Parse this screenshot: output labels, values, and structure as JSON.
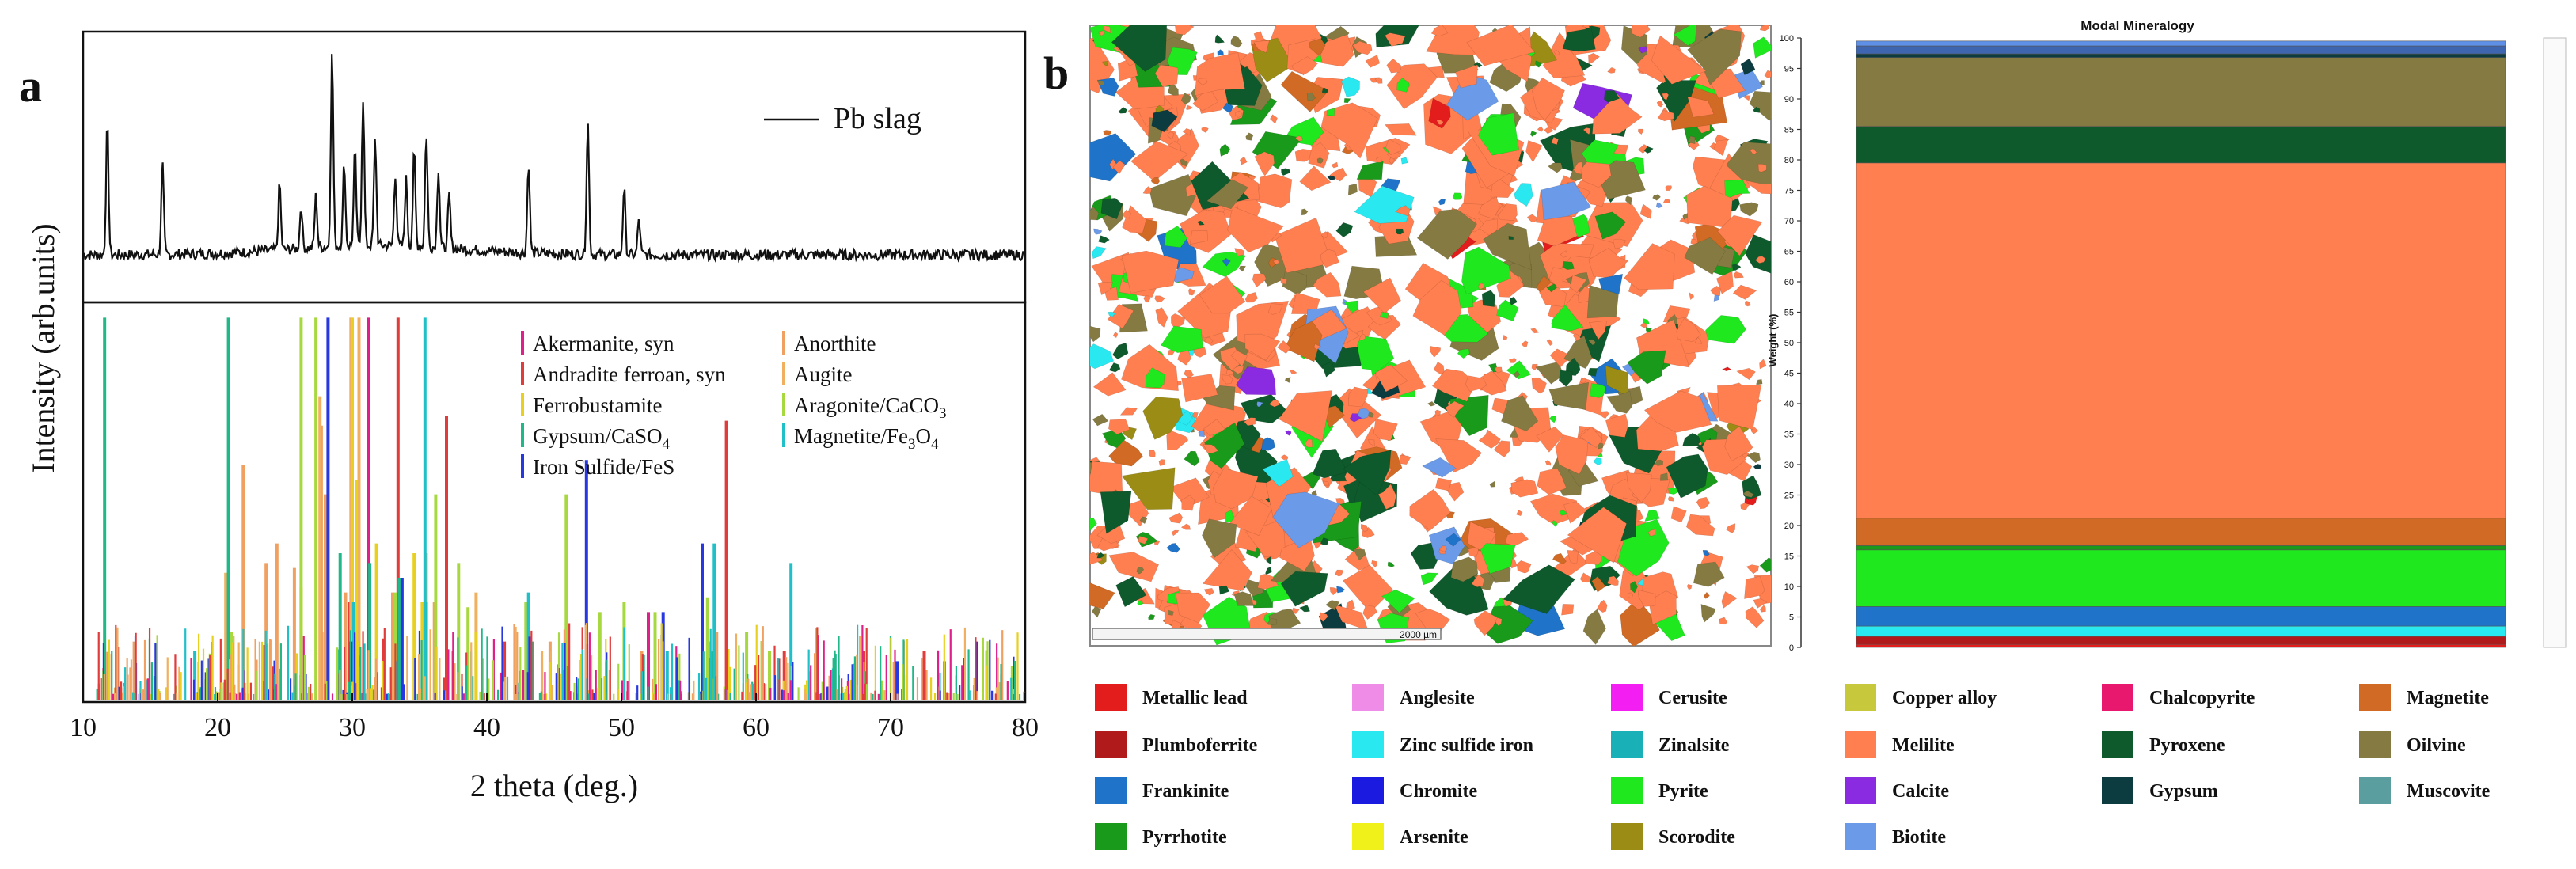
{
  "panel_a": {
    "label": "a",
    "ylabel": "Intensity (arb.units)",
    "xlabel": "2 theta (deg.)",
    "xticks": [
      "10",
      "20",
      "30",
      "40",
      "50",
      "60",
      "70",
      "80"
    ],
    "pattern_legend": "Pb slag",
    "phases": [
      {
        "name": "Akermanite, syn",
        "color": "#e0208a"
      },
      {
        "name": "Anorthite",
        "color": "#f0a060"
      },
      {
        "name": "Andradite ferroan, syn",
        "color": "#e03c3c"
      },
      {
        "name": "Augite",
        "color": "#f0b060"
      },
      {
        "name": "Ferrobustamite",
        "color": "#e8d020"
      },
      {
        "name": "Aragonite/CaCO3",
        "color": "#a8d840"
      },
      {
        "name": "Gypsum/CaSO4",
        "color": "#20b888"
      },
      {
        "name": "Magnetite/Fe3O4",
        "color": "#20c0c8"
      },
      {
        "name": "Iron Sulfide/FeS",
        "color": "#2838e0"
      }
    ],
    "legend_lines": {
      "aragonite": [
        "Aragonite/CaCO",
        "3"
      ],
      "gypsum": [
        "Gypsum/CaSO",
        "4"
      ],
      "magnetite": [
        "Magnetite/Fe",
        "3",
        "O",
        "4"
      ]
    }
  },
  "chart_data": [
    {
      "type": "line",
      "title": "",
      "xlabel": "2 theta (deg.)",
      "ylabel": "Intensity (arb.units)",
      "xlim": [
        10,
        80
      ],
      "series": [
        {
          "name": "Pb slag",
          "peaks": [
            [
              11.8,
              0.55
            ],
            [
              15.9,
              0.38
            ],
            [
              24.6,
              0.28
            ],
            [
              26.2,
              0.18
            ],
            [
              27.3,
              0.22
            ],
            [
              28.5,
              0.82
            ],
            [
              29.4,
              0.35
            ],
            [
              30.2,
              0.4
            ],
            [
              30.8,
              0.62
            ],
            [
              31.7,
              0.45
            ],
            [
              33.2,
              0.3
            ],
            [
              34.0,
              0.28
            ],
            [
              34.6,
              0.4
            ],
            [
              35.5,
              0.48
            ],
            [
              36.4,
              0.33
            ],
            [
              37.2,
              0.22
            ],
            [
              43.1,
              0.38
            ],
            [
              47.5,
              0.56
            ],
            [
              50.2,
              0.28
            ],
            [
              51.3,
              0.15
            ]
          ]
        }
      ]
    },
    {
      "type": "bar",
      "title": "",
      "xlabel": "2 theta (deg.)",
      "xlim": [
        10,
        80
      ],
      "series": [
        {
          "name": "Akermanite, syn",
          "x": [
            31.2,
            52.0
          ],
          "values": [
            0.78,
            0.18
          ]
        },
        {
          "name": "Anorthite",
          "x": [
            13.8,
            21.9,
            23.6,
            24.4,
            25.7,
            27.7,
            28.0,
            29.5,
            33.0,
            36.1,
            42.2,
            44.7,
            51.5
          ],
          "values": [
            0.12,
            0.48,
            0.28,
            0.32,
            0.27,
            0.56,
            0.42,
            0.22,
            0.22,
            0.2,
            0.14,
            0.12,
            0.1
          ]
        },
        {
          "name": "Andradite ferroan, syn",
          "x": [
            29.8,
            33.4,
            37.0,
            41.3,
            57.8,
            62.1,
            68.0,
            72.5
          ],
          "values": [
            0.2,
            0.78,
            0.58,
            0.12,
            0.57,
            0.1,
            0.1,
            0.1
          ]
        },
        {
          "name": "Augite",
          "x": [
            20.6,
            27.6,
            29.9,
            30.5,
            35.5,
            39.2,
            42.1,
            56.5
          ],
          "values": [
            0.26,
            0.62,
            0.78,
            0.78,
            0.3,
            0.22,
            0.15,
            0.12
          ]
        },
        {
          "name": "Ferrobustamite",
          "x": [
            26.2,
            30.0,
            30.3,
            31.8,
            34.6,
            35.2,
            39.2,
            45.8
          ],
          "values": [
            0.23,
            0.78,
            0.45,
            0.32,
            0.3,
            0.2,
            0.14,
            0.12
          ]
        },
        {
          "name": "Aragonite/CaCO3",
          "x": [
            21.0,
            26.2,
            27.3,
            33.2,
            36.2,
            37.9,
            38.6,
            42.9,
            45.9,
            48.4,
            50.2,
            52.5,
            56.4,
            59.3,
            61.0
          ],
          "values": [
            0.14,
            0.78,
            0.78,
            0.22,
            0.42,
            0.28,
            0.19,
            0.2,
            0.42,
            0.18,
            0.2,
            0.18,
            0.21,
            0.14,
            0.1
          ]
        },
        {
          "name": "Gypsum/CaSO4",
          "x": [
            11.6,
            20.8,
            29.1,
            31.3,
            33.5,
            35.5,
            43.4
          ],
          "values": [
            0.78,
            0.78,
            0.3,
            0.28,
            0.25,
            0.2,
            0.12
          ]
        },
        {
          "name": "Magnetite/Fe3O4",
          "x": [
            18.3,
            30.1,
            35.4,
            43.1,
            53.4,
            56.9,
            62.6,
            74.0
          ],
          "values": [
            0.1,
            0.2,
            0.78,
            0.22,
            0.1,
            0.32,
            0.28,
            0.08
          ]
        },
        {
          "name": "Iron Sulfide/FeS",
          "x": [
            28.2,
            29.9,
            33.7,
            43.2,
            47.4,
            53.1,
            56.0,
            70.5,
            76.4
          ],
          "values": [
            0.78,
            0.12,
            0.25,
            0.13,
            0.49,
            0.18,
            0.32,
            0.08,
            0.12
          ]
        }
      ]
    },
    {
      "type": "bar",
      "title": "Modal Mineralogy",
      "xlabel": "",
      "ylabel": "Weight (%)",
      "ylim": [
        0,
        100
      ],
      "yticks": [
        0,
        5,
        10,
        15,
        20,
        25,
        30,
        35,
        40,
        45,
        50,
        55,
        60,
        65,
        70,
        75,
        80,
        85,
        90,
        95,
        100
      ],
      "stacked": true,
      "series": [
        {
          "name": "Metallic lead",
          "color": "#e31c1c",
          "values": [
            0.5
          ]
        },
        {
          "name": "Plumboferrite",
          "color": "#b01a1a",
          "values": [
            1.3
          ]
        },
        {
          "name": "Zinc sulfide iron",
          "color": "#2ae8f0",
          "values": [
            1.7
          ]
        },
        {
          "name": "Frankinite",
          "color": "#1f73c8",
          "values": [
            3.2
          ]
        },
        {
          "name": "Pyrite",
          "color": "#1fe81f",
          "values": [
            9.3
          ]
        },
        {
          "name": "Pyrrhotite",
          "color": "#1a9a1a",
          "values": [
            0.7
          ]
        },
        {
          "name": "Magnetite",
          "color": "#d06a24",
          "values": [
            4.5
          ]
        },
        {
          "name": "Melilite",
          "color": "#ff7f50",
          "values": [
            58.3
          ]
        },
        {
          "name": "Pyroxene",
          "color": "#0e5a2c",
          "values": [
            6.0
          ]
        },
        {
          "name": "Oilvine",
          "color": "#857b42",
          "values": [
            11.3
          ]
        },
        {
          "name": "Gypsum",
          "color": "#0c3c40",
          "values": [
            0.6
          ]
        },
        {
          "name": "Muscovite",
          "color": "#3e66b0",
          "values": [
            1.3
          ]
        },
        {
          "name": "Biotite",
          "color": "#5e90e8",
          "values": [
            0.8
          ]
        }
      ]
    }
  ],
  "panel_b": {
    "label": "b",
    "scale_label": "2000 µm",
    "legend": [
      {
        "name": "Metallic lead",
        "color": "#e31c1c"
      },
      {
        "name": "Anglesite",
        "color": "#ef8ce8"
      },
      {
        "name": "Cerusite",
        "color": "#f21ef2"
      },
      {
        "name": "Copper alloy",
        "color": "#c8c83c"
      },
      {
        "name": "Chalcopyrite",
        "color": "#e8186e"
      },
      {
        "name": "Magnetite",
        "color": "#d06a24"
      },
      {
        "name": "Plumboferrite",
        "color": "#b01a1a"
      },
      {
        "name": "Zinc sulfide iron",
        "color": "#2ae8f0"
      },
      {
        "name": "Zinalsite",
        "color": "#1ab0b8"
      },
      {
        "name": "Melilite",
        "color": "#ff7f50"
      },
      {
        "name": "Pyroxene",
        "color": "#0e5a2c"
      },
      {
        "name": "Oilvine",
        "color": "#857b42"
      },
      {
        "name": "Frankinite",
        "color": "#1f73c8"
      },
      {
        "name": "Chromite",
        "color": "#1a1ae0"
      },
      {
        "name": "Pyrite",
        "color": "#1fe81f"
      },
      {
        "name": "Calcite",
        "color": "#8a2be2"
      },
      {
        "name": "Gypsum",
        "color": "#0c3c40"
      },
      {
        "name": "Muscovite",
        "color": "#5a9ea0"
      },
      {
        "name": "Pyrrhotite",
        "color": "#1a9a1a"
      },
      {
        "name": "Arsenite",
        "color": "#f0f01a"
      },
      {
        "name": "Scorodite",
        "color": "#9a8c14"
      },
      {
        "name": "Biotite",
        "color": "#6a9ae8"
      }
    ]
  }
}
